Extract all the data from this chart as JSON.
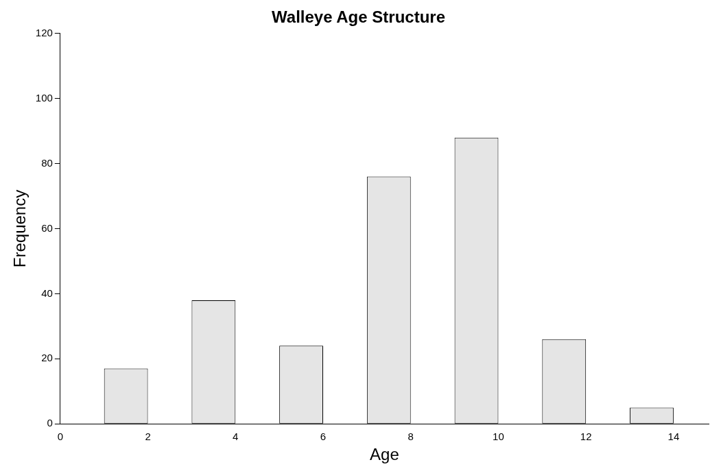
{
  "chart_data": {
    "type": "bar",
    "title": "Walleye Age Structure",
    "xlabel": "Age",
    "ylabel": "Frequency",
    "x": [
      1.5,
      3.5,
      5.5,
      7.5,
      9.5,
      11.5,
      13.5
    ],
    "values": [
      17,
      38,
      24,
      76,
      88,
      26,
      5
    ],
    "color": "#e5e5e5",
    "xlim": [
      0,
      14.8
    ],
    "xticks": [
      0,
      2,
      4,
      6,
      8,
      10,
      12,
      14
    ],
    "ylim": [
      0,
      120
    ],
    "yticks": [
      0,
      20,
      40,
      60,
      80,
      100,
      120
    ],
    "grid": false,
    "legend": false
  }
}
